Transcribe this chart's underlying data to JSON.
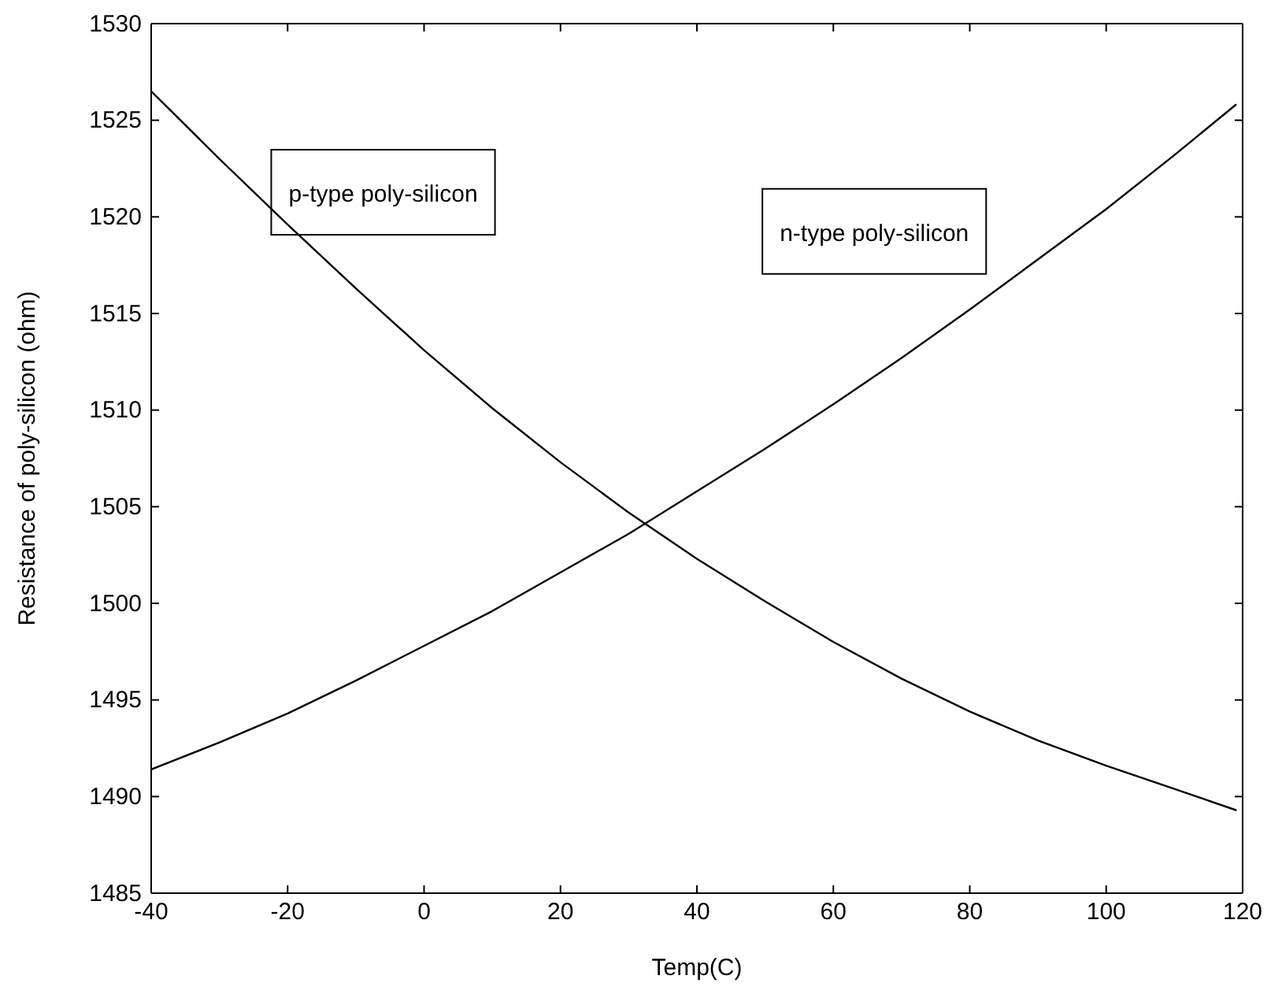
{
  "chart_data": {
    "type": "line",
    "xlabel": "Temp(C)",
    "ylabel": "Resistance of poly-silicon (ohm)",
    "x": [
      -40,
      -30,
      -20,
      -10,
      0,
      10,
      20,
      30,
      40,
      50,
      60,
      70,
      80,
      90,
      100,
      110,
      119
    ],
    "series": [
      {
        "name": "p-type poly-silicon",
        "color": "#000000",
        "values": [
          1526.5,
          1523,
          1519.6,
          1516.3,
          1513.1,
          1510.1,
          1507.3,
          1504.7,
          1502.3,
          1500.1,
          1498,
          1496.1,
          1494.4,
          1492.9,
          1491.6,
          1490.4,
          1489.3
        ]
      },
      {
        "name": "n-type poly-silicon",
        "color": "#000000",
        "values": [
          1491.4,
          1492.8,
          1494.3,
          1496,
          1497.8,
          1499.6,
          1501.6,
          1503.6,
          1505.8,
          1508,
          1510.3,
          1512.7,
          1515.2,
          1517.8,
          1520.4,
          1523.2,
          1525.8
        ]
      }
    ],
    "xlim": [
      -40,
      120
    ],
    "xticks": [
      -40,
      -20,
      0,
      20,
      40,
      60,
      80,
      100,
      120
    ],
    "ylim": [
      1485,
      1530
    ],
    "yticks": [
      1485,
      1490,
      1495,
      1500,
      1505,
      1510,
      1515,
      1520,
      1525,
      1530
    ],
    "grid": false,
    "legend": false,
    "marker": "none",
    "line_style": "solid"
  }
}
